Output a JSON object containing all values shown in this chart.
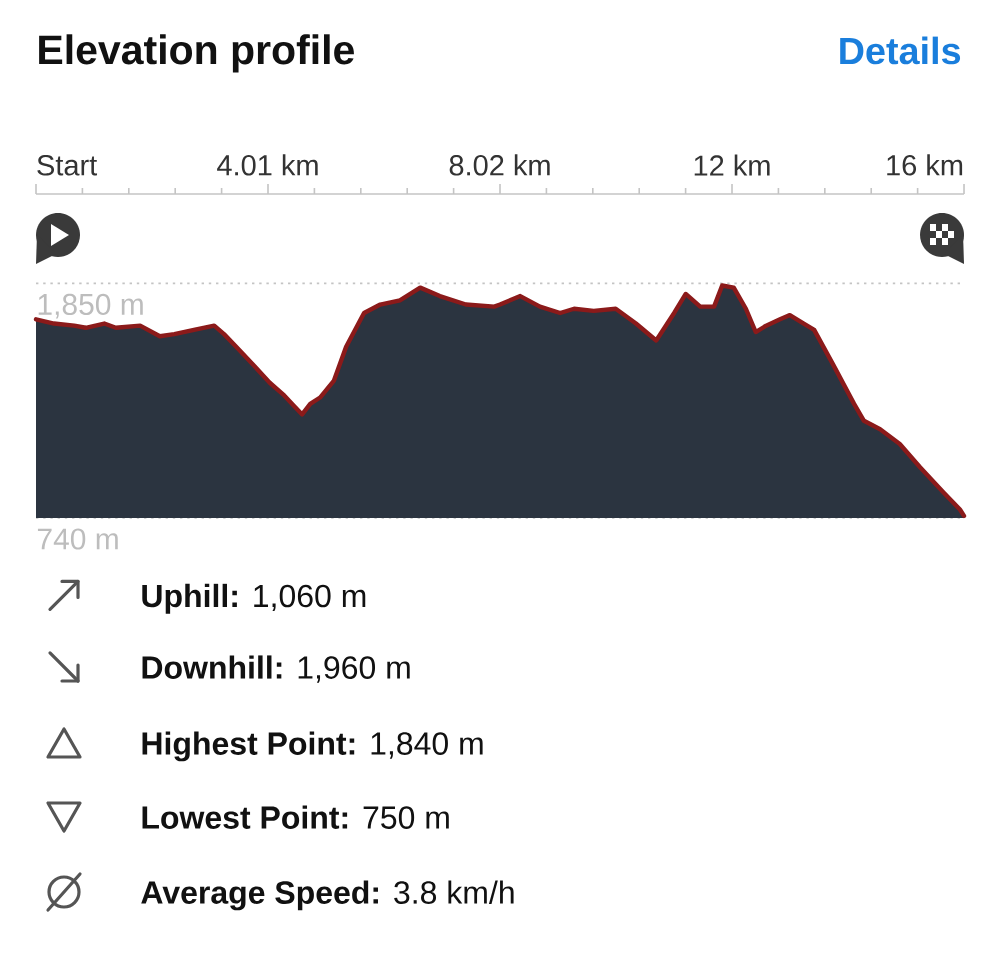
{
  "chart_data": {
    "type": "area",
    "title": "Elevation profile",
    "annotations": [
      "Details",
      "**Uphill:** 1,060 m",
      "**Downhill:** 1,960 m",
      "**Highest Point:** 1,840 m",
      "**Lowest Point:** 750 m",
      "**Average Speed:** 3.8 km/h"
    ],
    "x": [
      0,
      0.31,
      0.66,
      0.86,
      1.18,
      1.38,
      1.8,
      2.14,
      2.39,
      2.73,
      3.08,
      3.25,
      3.46,
      3.77,
      4.04,
      4.29,
      4.46,
      4.6,
      4.74,
      4.91,
      5.15,
      5.36,
      5.67,
      5.95,
      6.29,
      6.64,
      6.98,
      7.43,
      7.92,
      8.02,
      8.37,
      8.71,
      9.06,
      9.3,
      9.64,
      10.02,
      10.37,
      10.72,
      11.03,
      11.23,
      11.48,
      11.72,
      11.86,
      12.06,
      12.27,
      12.44,
      12.62,
      12.86,
      13.03,
      13.27,
      13.45,
      13.79,
      14.14,
      14.31,
      14.59,
      14.93,
      15.28,
      15.69,
      15.97,
      16.04
    ],
    "values": [
      1680,
      1660,
      1650,
      1640,
      1660,
      1640,
      1650,
      1600,
      1610,
      1630,
      1650,
      1610,
      1550,
      1460,
      1380,
      1320,
      1270,
      1230,
      1280,
      1310,
      1390,
      1550,
      1710,
      1750,
      1770,
      1830,
      1790,
      1750,
      1740,
      1750,
      1790,
      1740,
      1710,
      1730,
      1720,
      1730,
      1660,
      1580,
      1710,
      1800,
      1740,
      1740,
      1840,
      1830,
      1730,
      1620,
      1650,
      1680,
      1700,
      1660,
      1630,
      1460,
      1280,
      1200,
      1160,
      1090,
      980,
      860,
      780,
      750
    ],
    "color": "#2b3440",
    "xlim": [
      0,
      16.04
    ],
    "xticks": [
      {
        "value": 0,
        "label": "Start"
      },
      {
        "value": 4.01,
        "label": "4.01 km"
      },
      {
        "value": 8.02,
        "label": "8.02 km"
      },
      {
        "value": 12.03,
        "label": "12 km"
      },
      {
        "value": 16.04,
        "label": "16 km"
      }
    ],
    "ylim": [
      740,
      1850
    ],
    "yticks": [
      {
        "value": 740,
        "label": "740 m"
      },
      {
        "value": 1850,
        "label": "1,850 m"
      }
    ],
    "grid": "y"
  }
}
